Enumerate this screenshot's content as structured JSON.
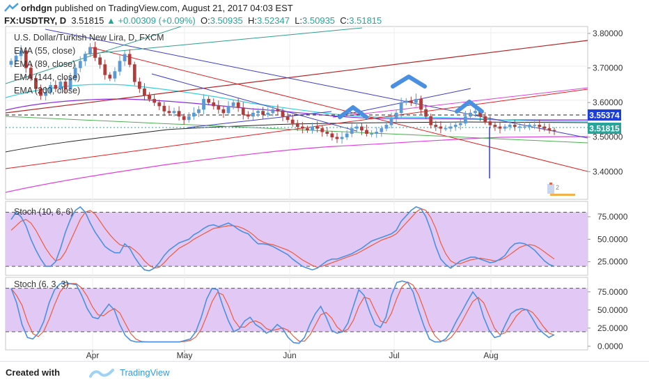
{
  "header": {
    "author": "orhdgn",
    "published_text": " published on TradingView.com, August 21, 2017 04:03 EST",
    "symbol_line": "FX:USDTRY, D",
    "last": "3.51815",
    "change": "+0.00309 (+0.09%)",
    "o_label": "O:",
    "o": "3.50935",
    "h_label": "H:",
    "h": "3.52347",
    "l_label": "L:",
    "l": "3.50935",
    "c_label": "C:",
    "c": "3.51815"
  },
  "footer": {
    "created_with": "Created with",
    "brand": "TradingView"
  },
  "colors": {
    "up": "#26a69a",
    "bull_candle": "#5b9bd5",
    "bear_candle": "#b23b3b",
    "stoch_fill": "#e2c9f5",
    "k_line": "#4a90e2",
    "d_line": "#ef5a3c",
    "last_price_tag": "#26a69a",
    "level_tag": "#1e3ed8"
  },
  "chart_data": [
    {
      "type": "candlestick",
      "title": "U.S. Dollar/Turkish New Lira, D, FXCM",
      "indicators": [
        "EMA (55, close)",
        "EMA (89, close)",
        "EMA (144, close)",
        "EMA (200, close)"
      ],
      "y_ticks": [
        "3.80000",
        "3.70000",
        "3.60000",
        "3.50000",
        "3.40000"
      ],
      "ylim": [
        3.32,
        3.82
      ],
      "price_tags": {
        "level": "3.55374",
        "last": "3.51815"
      },
      "x_labels": [
        "Apr",
        "May",
        "Jun",
        "Jul",
        "Aug"
      ],
      "closes": [
        3.72,
        3.735,
        3.75,
        3.7,
        3.67,
        3.64,
        3.62,
        3.63,
        3.65,
        3.64,
        3.66,
        3.64,
        3.67,
        3.7,
        3.72,
        3.74,
        3.76,
        3.73,
        3.71,
        3.68,
        3.67,
        3.69,
        3.72,
        3.74,
        3.71,
        3.66,
        3.64,
        3.62,
        3.61,
        3.6,
        3.59,
        3.575,
        3.57,
        3.575,
        3.56,
        3.55,
        3.56,
        3.57,
        3.58,
        3.61,
        3.6,
        3.59,
        3.58,
        3.57,
        3.59,
        3.6,
        3.585,
        3.565,
        3.56,
        3.57,
        3.575,
        3.565,
        3.57,
        3.58,
        3.575,
        3.56,
        3.55,
        3.54,
        3.53,
        3.525,
        3.52,
        3.53,
        3.525,
        3.515,
        3.51,
        3.5,
        3.495,
        3.5,
        3.51,
        3.525,
        3.53,
        3.52,
        3.51,
        3.51,
        3.515,
        3.525,
        3.535,
        3.555,
        3.57,
        3.6,
        3.605,
        3.6,
        3.61,
        3.58,
        3.56,
        3.535,
        3.53,
        3.525,
        3.525,
        3.53,
        3.535,
        3.54,
        3.56,
        3.57,
        3.575,
        3.56,
        3.545,
        3.535,
        3.53,
        3.525,
        3.53,
        3.535,
        3.53,
        3.53,
        3.53,
        3.535,
        3.535,
        3.53,
        3.525,
        3.52,
        3.5181
      ]
    },
    {
      "type": "line",
      "title": "Stoch (10, 6, 6)",
      "y_ticks": [
        "75.0000",
        "50.0000",
        "25.0000"
      ],
      "ylim": [
        10,
        92
      ],
      "band": [
        20,
        80
      ],
      "k": [
        72,
        80,
        75,
        65,
        50,
        38,
        28,
        20,
        20,
        25,
        40,
        58,
        72,
        82,
        86,
        80,
        68,
        58,
        50,
        42,
        38,
        35,
        35,
        45,
        40,
        30,
        22,
        16,
        15,
        18,
        24,
        32,
        38,
        42,
        46,
        48,
        50,
        55,
        58,
        62,
        65,
        66,
        64,
        66,
        68,
        65,
        61,
        58,
        56,
        50,
        45,
        45,
        44,
        42,
        39,
        36,
        33,
        28,
        24,
        20,
        18,
        16,
        18,
        22,
        26,
        28,
        28,
        30,
        32,
        34,
        37,
        40,
        44,
        48,
        50,
        52,
        54,
        56,
        60,
        70,
        76,
        82,
        86,
        84,
        75,
        60,
        42,
        28,
        22,
        18,
        22,
        26,
        28,
        30,
        30,
        28,
        26,
        24,
        25,
        28,
        32,
        40,
        45,
        46,
        45,
        42,
        38,
        32,
        26,
        22,
        20
      ],
      "d": [
        60,
        65,
        70,
        72,
        68,
        60,
        50,
        40,
        32,
        26,
        28,
        36,
        48,
        60,
        72,
        80,
        82,
        78,
        70,
        62,
        55,
        49,
        44,
        42,
        42,
        38,
        33,
        26,
        21,
        18,
        19,
        24,
        30,
        35,
        40,
        43,
        46,
        50,
        53,
        56,
        59,
        62,
        63,
        64,
        65,
        65,
        64,
        62,
        59,
        55,
        50,
        47,
        45,
        44,
        42,
        40,
        38,
        35,
        31,
        27,
        24,
        21,
        19,
        20,
        22,
        24,
        26,
        28,
        30,
        32,
        34,
        37,
        40,
        43,
        46,
        49,
        51,
        53,
        56,
        62,
        68,
        74,
        80,
        84,
        82,
        74,
        62,
        46,
        34,
        26,
        23,
        23,
        25,
        27,
        28,
        29,
        28,
        27,
        26,
        27,
        29,
        33,
        37,
        41,
        43,
        44,
        43,
        40,
        36,
        32,
        28
      ]
    },
    {
      "type": "line",
      "title": "Stoch (6, 3, 3)",
      "y_ticks": [
        "75.0000",
        "50.0000",
        "25.0000",
        "0.0000"
      ],
      "ylim": [
        -5,
        95
      ],
      "band": [
        20,
        80
      ],
      "k": [
        80,
        60,
        30,
        12,
        10,
        18,
        34,
        60,
        78,
        86,
        88,
        86,
        85,
        70,
        52,
        40,
        38,
        48,
        58,
        50,
        30,
        15,
        8,
        6,
        6,
        6,
        6,
        6,
        6,
        6,
        6,
        6,
        8,
        10,
        20,
        40,
        65,
        80,
        78,
        55,
        35,
        20,
        24,
        35,
        40,
        30,
        25,
        18,
        22,
        30,
        24,
        12,
        5,
        4,
        12,
        30,
        45,
        55,
        40,
        22,
        18,
        20,
        32,
        55,
        78,
        70,
        48,
        30,
        26,
        40,
        70,
        88,
        90,
        88,
        75,
        50,
        28,
        10,
        6,
        6,
        10,
        20,
        35,
        48,
        62,
        75,
        65,
        40,
        22,
        12,
        14,
        30,
        45,
        50,
        52,
        50,
        38,
        25,
        18,
        12,
        16
      ]
    }
  ]
}
